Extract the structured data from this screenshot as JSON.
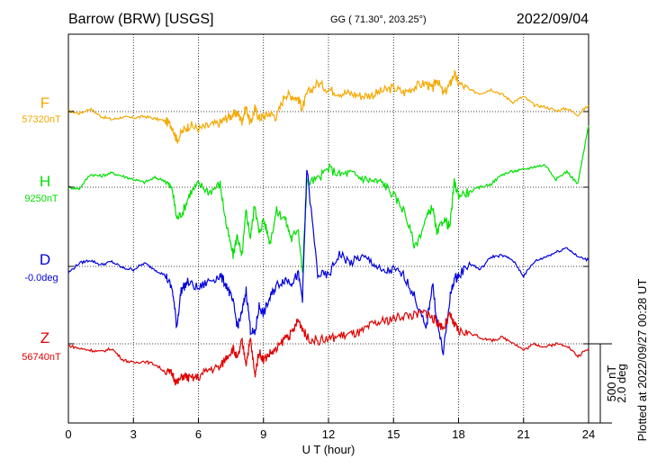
{
  "header": {
    "station": "Barrow (BRW)  [USGS]",
    "coords": "GG ( 71.30°, 203.25°)",
    "date": "2022/09/04"
  },
  "footer_note": "Plotted at 2022/09/27 00:28 UT",
  "scale_bar": {
    "line1": "500 nT",
    "line2": "2.0 deg"
  },
  "chart_data": {
    "type": "line",
    "title": "Barrow (BRW)  [USGS]",
    "xlabel": "U T (hour)",
    "ylabel": "",
    "xlim": [
      0,
      24
    ],
    "x_ticks": [
      0,
      3,
      6,
      9,
      12,
      15,
      18,
      21,
      24
    ],
    "x_tick_labels": [
      "0",
      "3",
      "6",
      "9",
      "12",
      "15",
      "18",
      "21",
      "24"
    ],
    "grid": true,
    "scale_nT_per_bar": 500,
    "scale_deg_per_bar": 2.0,
    "series": [
      {
        "name": "F",
        "baseline_label": "57320nT",
        "color": "#f5a800",
        "x": [
          0,
          0.5,
          1.0,
          1.5,
          2.0,
          2.5,
          3.0,
          3.5,
          4.0,
          4.5,
          4.8,
          5.0,
          5.3,
          5.6,
          6.0,
          6.5,
          7.0,
          7.3,
          7.6,
          7.8,
          8.0,
          8.2,
          8.4,
          8.6,
          8.8,
          9.0,
          9.3,
          9.6,
          10.0,
          10.3,
          10.6,
          10.8,
          11.0,
          11.5,
          12.0,
          12.5,
          13.0,
          13.5,
          14.0,
          14.5,
          15.0,
          15.5,
          16.0,
          16.5,
          16.8,
          17.0,
          17.3,
          17.6,
          17.8,
          18.0,
          18.5,
          19.0,
          19.5,
          20.0,
          20.5,
          21.0,
          21.5,
          22.0,
          22.5,
          23.0,
          23.5,
          24.0
        ],
        "values": [
          5,
          -12,
          18,
          -30,
          -50,
          -35,
          -40,
          -30,
          -45,
          -60,
          -95,
          -180,
          -120,
          -85,
          -110,
          -90,
          -70,
          -40,
          -20,
          -10,
          -60,
          30,
          -80,
          20,
          -40,
          -30,
          -10,
          -35,
          110,
          100,
          80,
          20,
          110,
          180,
          140,
          120,
          115,
          100,
          105,
          130,
          150,
          120,
          160,
          180,
          140,
          210,
          110,
          170,
          240,
          180,
          135,
          115,
          140,
          110,
          60,
          95,
          40,
          30,
          5,
          20,
          -20,
          40
        ]
      },
      {
        "name": "H",
        "baseline_label": "9250nT",
        "color": "#00e000",
        "x": [
          0,
          0.5,
          1.0,
          1.5,
          2.0,
          2.5,
          3.0,
          3.5,
          4.0,
          4.5,
          4.8,
          5.0,
          5.3,
          5.6,
          6.0,
          6.5,
          7.0,
          7.3,
          7.6,
          7.8,
          8.0,
          8.2,
          8.4,
          8.6,
          8.8,
          9.0,
          9.3,
          9.6,
          10.0,
          10.3,
          10.6,
          10.8,
          11.0,
          11.5,
          12.0,
          12.5,
          13.0,
          13.5,
          14.0,
          14.5,
          15.0,
          15.5,
          16.0,
          16.5,
          16.8,
          17.0,
          17.3,
          17.6,
          17.8,
          18.0,
          18.5,
          19.0,
          19.5,
          20.0,
          20.5,
          21.0,
          21.5,
          22.0,
          22.5,
          23.0,
          23.5,
          24.0
        ],
        "values": [
          0,
          -10,
          80,
          70,
          90,
          70,
          50,
          30,
          60,
          40,
          -20,
          -200,
          -150,
          -40,
          20,
          -30,
          20,
          -250,
          -430,
          -300,
          -450,
          -150,
          -320,
          -100,
          -300,
          -200,
          -350,
          -150,
          -200,
          -330,
          -250,
          -550,
          30,
          50,
          120,
          80,
          90,
          60,
          40,
          30,
          -50,
          -150,
          -380,
          -200,
          -120,
          -300,
          -200,
          -250,
          30,
          -50,
          -30,
          0,
          20,
          80,
          100,
          110,
          130,
          140,
          50,
          100,
          20,
          390
        ]
      },
      {
        "name": "D",
        "baseline_label": "-0.0deg",
        "color": "#0000dd",
        "x": [
          0,
          0.5,
          1.0,
          1.5,
          2.0,
          2.5,
          3.0,
          3.5,
          4.0,
          4.5,
          4.8,
          5.0,
          5.2,
          5.5,
          6.0,
          6.5,
          7.0,
          7.3,
          7.6,
          7.8,
          8.0,
          8.2,
          8.4,
          8.6,
          8.8,
          9.0,
          9.3,
          9.6,
          10.0,
          10.3,
          10.6,
          10.8,
          11.0,
          11.5,
          12.0,
          12.5,
          13.0,
          13.5,
          14.0,
          14.5,
          15.0,
          15.5,
          16.0,
          16.5,
          16.8,
          17.0,
          17.3,
          17.6,
          17.8,
          18.0,
          18.5,
          19.0,
          19.5,
          20.0,
          20.5,
          21.0,
          21.5,
          22.0,
          22.5,
          23.0,
          23.5,
          24.0
        ],
        "values": [
          -40,
          20,
          40,
          10,
          30,
          -10,
          -20,
          20,
          -20,
          -60,
          -150,
          -380,
          -150,
          -100,
          -140,
          -90,
          -60,
          -120,
          -230,
          -380,
          -300,
          -150,
          -400,
          -430,
          -250,
          -300,
          -200,
          -120,
          -80,
          -100,
          -50,
          -200,
          620,
          -50,
          -60,
          80,
          20,
          60,
          30,
          -40,
          -20,
          -60,
          -200,
          -400,
          -100,
          -350,
          -550,
          -200,
          -80,
          -60,
          20,
          -20,
          60,
          70,
          40,
          -60,
          30,
          60,
          90,
          120,
          60,
          40
        ]
      },
      {
        "name": "Z",
        "baseline_label": "56740nT",
        "color": "#e00000",
        "x": [
          0,
          0.5,
          1.0,
          1.5,
          2.0,
          2.5,
          3.0,
          3.5,
          4.0,
          4.5,
          4.8,
          5.0,
          5.3,
          5.6,
          6.0,
          6.5,
          7.0,
          7.3,
          7.6,
          7.8,
          8.0,
          8.2,
          8.4,
          8.6,
          8.8,
          9.0,
          9.3,
          9.6,
          10.0,
          10.3,
          10.6,
          10.8,
          11.0,
          11.5,
          12.0,
          12.5,
          13.0,
          13.5,
          14.0,
          14.5,
          15.0,
          15.5,
          16.0,
          16.5,
          16.8,
          17.0,
          17.3,
          17.6,
          17.8,
          18.0,
          18.5,
          19.0,
          19.5,
          20.0,
          20.5,
          21.0,
          21.5,
          22.0,
          22.5,
          23.0,
          23.5,
          24.0
        ],
        "values": [
          -10,
          -30,
          -40,
          -50,
          -30,
          -100,
          -120,
          -110,
          -130,
          -180,
          -190,
          -250,
          -200,
          -220,
          -210,
          -160,
          -150,
          -80,
          -30,
          -100,
          20,
          -120,
          30,
          -200,
          -50,
          -100,
          -60,
          -40,
          40,
          60,
          150,
          100,
          40,
          20,
          30,
          50,
          60,
          70,
          120,
          140,
          160,
          180,
          180,
          200,
          160,
          140,
          100,
          180,
          120,
          80,
          70,
          40,
          20,
          40,
          10,
          -40,
          0,
          -20,
          0,
          -10,
          -80,
          -30
        ]
      }
    ]
  }
}
